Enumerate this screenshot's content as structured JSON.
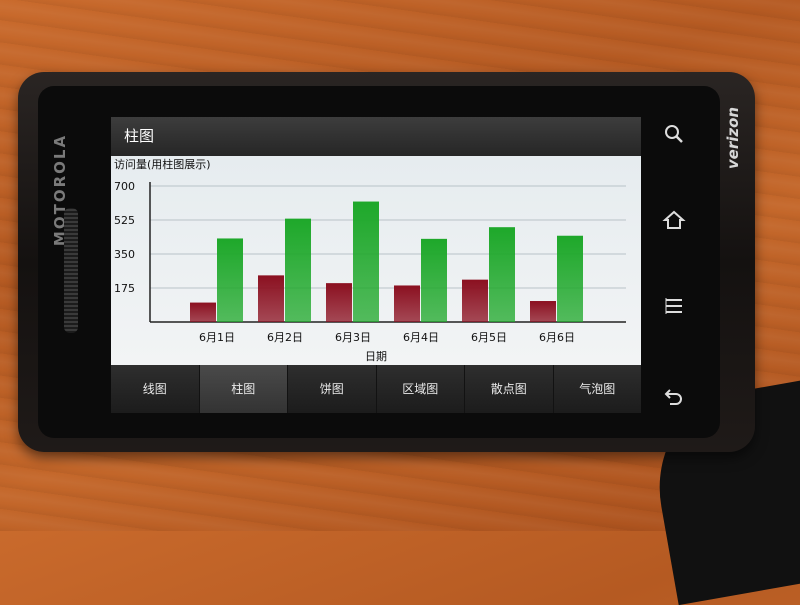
{
  "device": {
    "brand_left": "MOTOROLA",
    "brand_right": "verizon"
  },
  "app": {
    "title": "柱图"
  },
  "tabs": [
    {
      "label": "线图",
      "active": false
    },
    {
      "label": "柱图",
      "active": true
    },
    {
      "label": "饼图",
      "active": false
    },
    {
      "label": "区域图",
      "active": false
    },
    {
      "label": "散点图",
      "active": false
    },
    {
      "label": "气泡图",
      "active": false
    }
  ],
  "hardware_buttons": [
    "search-icon",
    "home-icon",
    "menu-icon",
    "back-icon"
  ],
  "chart_data": {
    "type": "bar",
    "ylabel": "访问量(用柱图展示)",
    "xlabel": "日期",
    "categories": [
      "6月1日",
      "6月2日",
      "6月3日",
      "6月4日",
      "6月5日",
      "6月6日"
    ],
    "ylim": [
      0,
      700
    ],
    "yticks": [
      175,
      350,
      525,
      700
    ],
    "grid": true,
    "series": [
      {
        "color": "#8b1020",
        "values": [
          100,
          240,
          200,
          188,
          218,
          108
        ]
      },
      {
        "color": "#1ea82a",
        "values": [
          430,
          532,
          620,
          428,
          488,
          444
        ]
      }
    ]
  }
}
